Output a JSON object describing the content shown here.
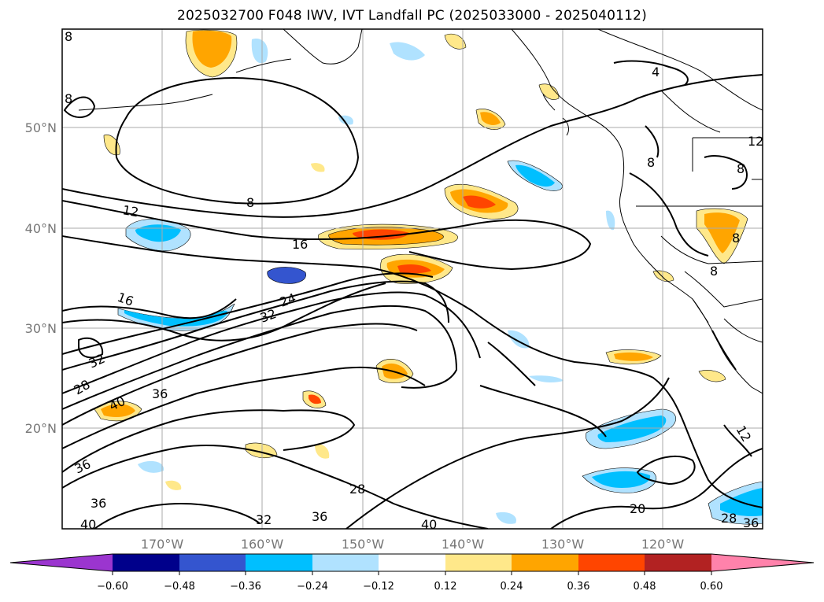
{
  "title": "2025032700 F048 IWV, IVT Landfall PC (2025033000 - 2025040112)",
  "latitude_labels": [
    "50°N",
    "40°N",
    "30°N",
    "20°N"
  ],
  "longitude_labels": [
    "170°W",
    "160°W",
    "150°W",
    "140°W",
    "130°W",
    "120°W"
  ],
  "colorbar": {
    "ticks": [
      "−0.60",
      "−0.48",
      "−0.36",
      "−0.24",
      "−0.12",
      "0.12",
      "0.24",
      "0.36",
      "0.48",
      "0.60"
    ],
    "colors": [
      "#9b35cf",
      "#00008b",
      "#3455cf",
      "#00bfff",
      "#b0e2ff",
      "#ffffff",
      "#ffe88a",
      "#ffa500",
      "#ff4500",
      "#b22222",
      "#ff82ab"
    ]
  },
  "contour_labels": [
    "4",
    "8",
    "8",
    "8",
    "8",
    "8",
    "8",
    "8",
    "12",
    "12",
    "12",
    "16",
    "16",
    "24",
    "32",
    "32",
    "28",
    "40",
    "36",
    "36",
    "36",
    "28",
    "32",
    "36",
    "40",
    "40",
    "20",
    "28",
    "36"
  ],
  "colors": {
    "land_line": "#000000",
    "grid": "#aaaaaa",
    "axis_label": "#777777"
  }
}
